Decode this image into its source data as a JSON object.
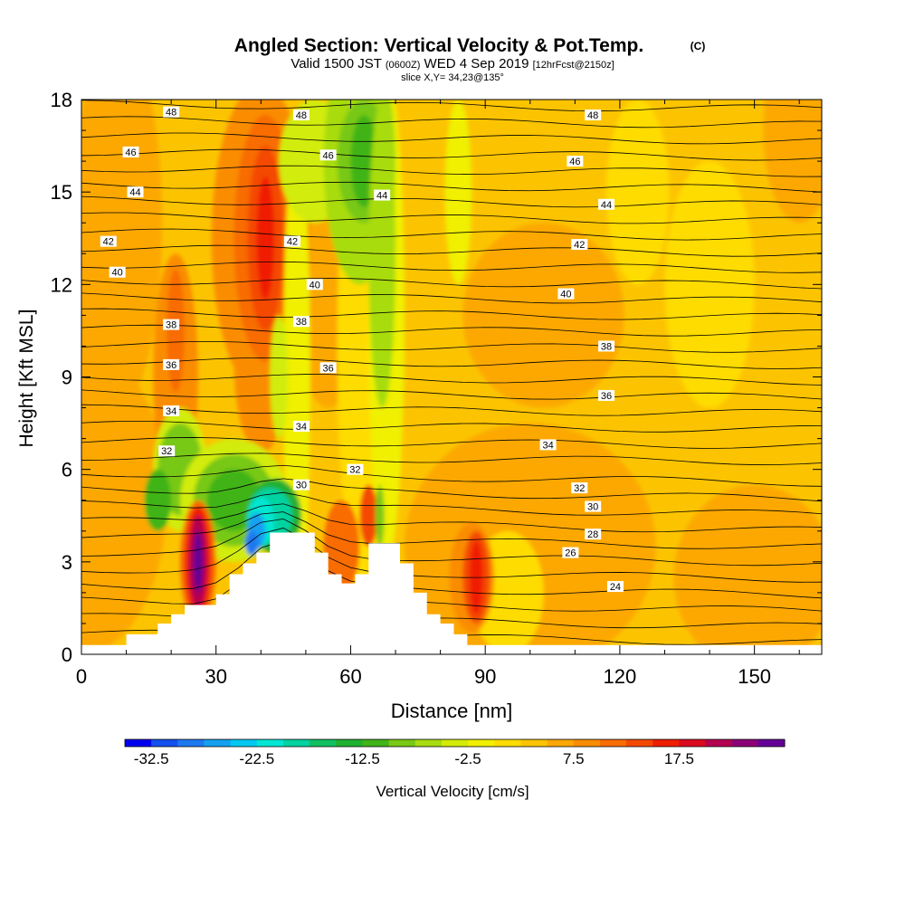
{
  "header": {
    "title_main": "Angled Section: Vertical Velocity & Pot.Temp.",
    "title_unit": "(C)",
    "valid_prefix": "Valid 1500 JST",
    "valid_utc": "(0600Z)",
    "valid_date": "WED 4 Sep 2019",
    "valid_fcst": "[12hrFcst@2150z]",
    "slice": "slice X,Y= 34,23@135°"
  },
  "chart_data": {
    "type": "heatmap",
    "title": "Angled Section: Vertical Velocity & Pot.Temp. (C)",
    "xlabel": "Distance [nm]",
    "ylabel": "Height [Kft MSL]",
    "xlim": [
      0,
      165
    ],
    "ylim": [
      0,
      18
    ],
    "xticks": [
      0,
      30,
      60,
      90,
      120,
      150
    ],
    "yticks": [
      0,
      3,
      6,
      9,
      12,
      15,
      18
    ],
    "colorbar": {
      "label": "Vertical Velocity [cm/s]",
      "ticks": [
        "-32.5",
        "-22.5",
        "-12.5",
        "-2.5",
        "7.5",
        "17.5"
      ],
      "levels": [
        -35,
        -32.5,
        -30,
        -27.5,
        -25,
        -22.5,
        -20,
        -17.5,
        -15,
        -12.5,
        -10,
        -7.5,
        -5,
        -2.5,
        0,
        2.5,
        5,
        7.5,
        10,
        12.5,
        15,
        17.5,
        20,
        22.5,
        25
      ],
      "colors": [
        "#0000f0",
        "#1450f0",
        "#1e78f0",
        "#14a0f0",
        "#00c8f0",
        "#00e6d2",
        "#00d2a0",
        "#10c060",
        "#20b030",
        "#40b418",
        "#78c814",
        "#a8dc10",
        "#d2ec08",
        "#f0f000",
        "#ffdc00",
        "#fcc400",
        "#fca800",
        "#fa8c00",
        "#f86c00",
        "#f44800",
        "#f01e00",
        "#dc0a1e",
        "#b40050",
        "#8c0078",
        "#640096"
      ]
    },
    "potential_temperature_labels": [
      {
        "x": 20,
        "y": 17.6,
        "label": "48"
      },
      {
        "x": 49,
        "y": 17.5,
        "label": "48"
      },
      {
        "x": 114,
        "y": 17.5,
        "label": "48"
      },
      {
        "x": 11,
        "y": 16.3,
        "label": "46"
      },
      {
        "x": 55,
        "y": 16.2,
        "label": "46"
      },
      {
        "x": 110,
        "y": 16.0,
        "label": "46"
      },
      {
        "x": 12,
        "y": 15.0,
        "label": "44"
      },
      {
        "x": 67,
        "y": 14.9,
        "label": "44"
      },
      {
        "x": 117,
        "y": 14.6,
        "label": "44"
      },
      {
        "x": 6,
        "y": 13.4,
        "label": "42"
      },
      {
        "x": 47,
        "y": 13.4,
        "label": "42"
      },
      {
        "x": 111,
        "y": 13.3,
        "label": "42"
      },
      {
        "x": 8,
        "y": 12.4,
        "label": "40"
      },
      {
        "x": 52,
        "y": 12.0,
        "label": "40"
      },
      {
        "x": 108,
        "y": 11.7,
        "label": "40"
      },
      {
        "x": 20,
        "y": 10.7,
        "label": "38"
      },
      {
        "x": 49,
        "y": 10.8,
        "label": "38"
      },
      {
        "x": 117,
        "y": 10.0,
        "label": "38"
      },
      {
        "x": 20,
        "y": 9.4,
        "label": "36"
      },
      {
        "x": 55,
        "y": 9.3,
        "label": "36"
      },
      {
        "x": 117,
        "y": 8.4,
        "label": "36"
      },
      {
        "x": 20,
        "y": 7.9,
        "label": "34"
      },
      {
        "x": 49,
        "y": 7.4,
        "label": "34"
      },
      {
        "x": 104,
        "y": 6.8,
        "label": "34"
      },
      {
        "x": 19,
        "y": 6.6,
        "label": "32"
      },
      {
        "x": 61,
        "y": 6.0,
        "label": "32"
      },
      {
        "x": 111,
        "y": 5.4,
        "label": "32"
      },
      {
        "x": 49,
        "y": 5.5,
        "label": "30"
      },
      {
        "x": 114,
        "y": 4.8,
        "label": "30"
      },
      {
        "x": 114,
        "y": 3.9,
        "label": "28"
      },
      {
        "x": 109,
        "y": 3.3,
        "label": "26"
      },
      {
        "x": 119,
        "y": 2.2,
        "label": "24"
      }
    ],
    "terrain": [
      [
        0,
        0.3
      ],
      [
        10,
        0.3
      ],
      [
        10,
        0.65
      ],
      [
        17,
        0.65
      ],
      [
        17,
        1.0
      ],
      [
        20,
        1.0
      ],
      [
        20,
        1.3
      ],
      [
        23,
        1.3
      ],
      [
        23,
        1.6
      ],
      [
        30,
        1.6
      ],
      [
        30,
        1.95
      ],
      [
        33,
        1.95
      ],
      [
        33,
        2.6
      ],
      [
        36,
        2.6
      ],
      [
        36,
        2.95
      ],
      [
        39,
        2.95
      ],
      [
        39,
        3.3
      ],
      [
        42,
        3.3
      ],
      [
        42,
        3.95
      ],
      [
        52,
        3.95
      ],
      [
        52,
        3.3
      ],
      [
        55,
        3.3
      ],
      [
        55,
        2.6
      ],
      [
        58,
        2.6
      ],
      [
        58,
        2.3
      ],
      [
        61,
        2.3
      ],
      [
        61,
        2.6
      ],
      [
        64,
        2.6
      ],
      [
        64,
        3.6
      ],
      [
        71,
        3.6
      ],
      [
        71,
        2.95
      ],
      [
        74,
        2.95
      ],
      [
        74,
        2.0
      ],
      [
        77,
        2.0
      ],
      [
        77,
        1.3
      ],
      [
        80,
        1.3
      ],
      [
        80,
        1.0
      ],
      [
        83,
        1.0
      ],
      [
        83,
        0.65
      ],
      [
        86,
        0.65
      ],
      [
        86,
        0.3
      ],
      [
        165,
        0.3
      ]
    ]
  }
}
